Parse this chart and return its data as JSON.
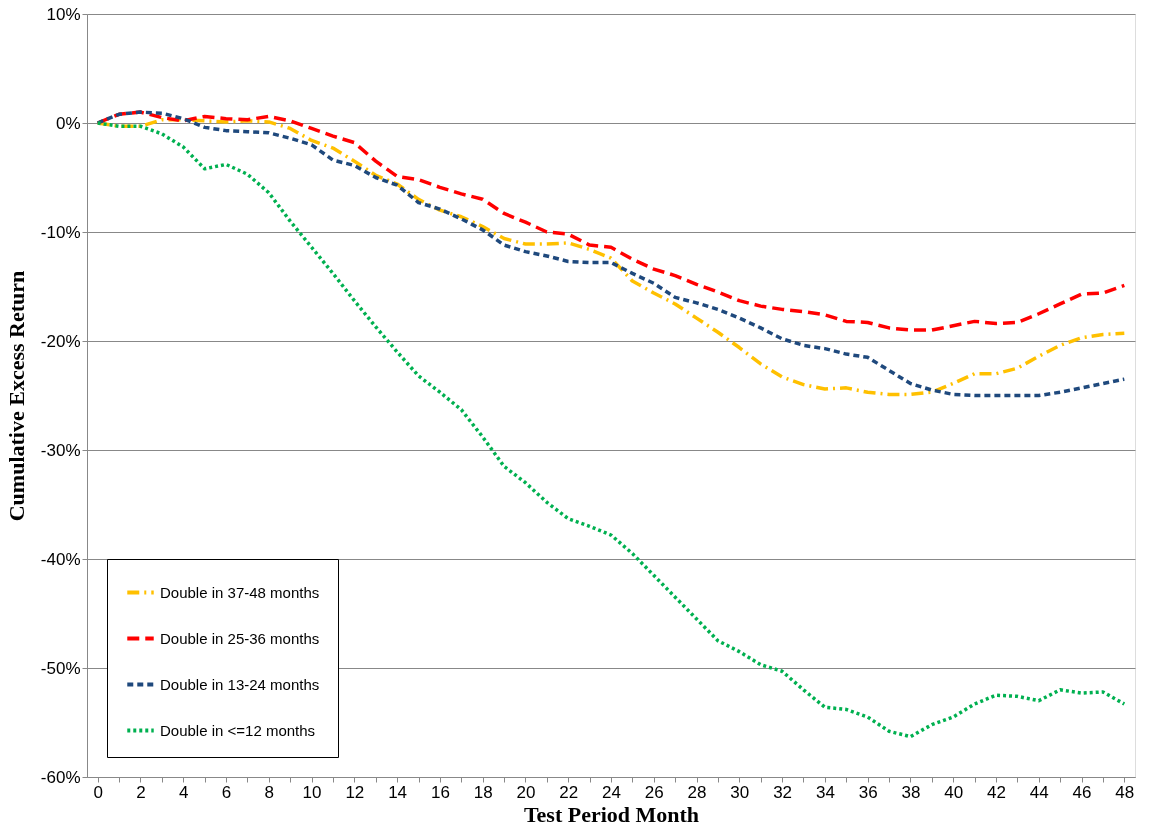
{
  "chart_data": {
    "type": "line",
    "xlabel": "Test Period Month",
    "ylabel": "Cumulative Excess Return",
    "x": [
      0,
      1,
      2,
      3,
      4,
      5,
      6,
      7,
      8,
      9,
      10,
      11,
      12,
      13,
      14,
      15,
      16,
      17,
      18,
      19,
      20,
      21,
      22,
      23,
      24,
      25,
      26,
      27,
      28,
      29,
      30,
      31,
      32,
      33,
      34,
      35,
      36,
      37,
      38,
      39,
      40,
      41,
      42,
      43,
      44,
      45,
      46,
      47,
      48
    ],
    "series": [
      {
        "name": "Double in 37-48 months",
        "color": "#ffc000",
        "line_style": "dashdot",
        "values": [
          0,
          -0.3,
          -0.3,
          0.3,
          0.3,
          0.2,
          0.1,
          0.2,
          0.1,
          -0.5,
          -1.6,
          -2.3,
          -3.5,
          -4.8,
          -5.6,
          -7,
          -8,
          -8.6,
          -9.5,
          -10.6,
          -11.1,
          -11.1,
          -11,
          -11.6,
          -12.4,
          -14.5,
          -15.6,
          -16.6,
          -17.9,
          -19.2,
          -20.6,
          -22.1,
          -23.3,
          -24,
          -24.4,
          -24.3,
          -24.7,
          -24.9,
          -24.9,
          -24.7,
          -23.9,
          -23,
          -23,
          -22.5,
          -21.4,
          -20.4,
          -19.7,
          -19.4,
          -19.3
        ]
      },
      {
        "name": "Double in 25-36 months",
        "color": "#ff0000",
        "line_style": "dashed",
        "values": [
          0,
          0.8,
          1,
          0.5,
          0.2,
          0.6,
          0.4,
          0.3,
          0.6,
          0.2,
          -0.5,
          -1.2,
          -1.8,
          -3.5,
          -4.9,
          -5.2,
          -5.9,
          -6.5,
          -7,
          -8.3,
          -9.1,
          -10,
          -10.2,
          -11.2,
          -11.4,
          -12.5,
          -13.4,
          -14,
          -14.8,
          -15.5,
          -16.3,
          -16.8,
          -17.1,
          -17.3,
          -17.6,
          -18.2,
          -18.3,
          -18.8,
          -19,
          -19,
          -18.6,
          -18.2,
          -18.4,
          -18.3,
          -17.5,
          -16.6,
          -15.7,
          -15.6,
          -14.9
        ]
      },
      {
        "name": "Double in 13-24 months",
        "color": "#1f497d",
        "line_style": "dashed",
        "values": [
          0,
          0.8,
          1,
          0.9,
          0.4,
          -0.4,
          -0.7,
          -0.8,
          -0.9,
          -1.4,
          -2,
          -3.4,
          -3.9,
          -5,
          -5.7,
          -7.3,
          -7.9,
          -8.8,
          -9.8,
          -11.2,
          -11.8,
          -12.2,
          -12.7,
          -12.8,
          -12.8,
          -13.8,
          -14.7,
          -16,
          -16.5,
          -17.1,
          -17.9,
          -18.8,
          -19.8,
          -20.4,
          -20.7,
          -21.2,
          -21.5,
          -22.7,
          -23.9,
          -24.5,
          -24.9,
          -25,
          -25,
          -25,
          -25,
          -24.7,
          -24.3,
          -23.9,
          -23.5
        ]
      },
      {
        "name": "Double in <=12 months",
        "color": "#00b050",
        "line_style": "dotted",
        "values": [
          0,
          -0.3,
          -0.3,
          -1,
          -2.2,
          -4.2,
          -3.8,
          -4.7,
          -6.4,
          -9,
          -11.4,
          -13.8,
          -16.3,
          -18.7,
          -21,
          -23.2,
          -24.7,
          -26.3,
          -28.8,
          -31.5,
          -33,
          -34.8,
          -36.3,
          -37,
          -37.8,
          -39.5,
          -41.5,
          -43.5,
          -45.5,
          -47.5,
          -48.5,
          -49.7,
          -50.3,
          -52,
          -53.6,
          -53.8,
          -54.5,
          -55.8,
          -56.3,
          -55.2,
          -54.5,
          -53.3,
          -52.5,
          -52.6,
          -53,
          -52,
          -52.3,
          -52.2,
          -53.3
        ]
      }
    ],
    "xlim": [
      -0.5,
      48.5
    ],
    "xticks": [
      0,
      {
        "value": 1,
        "label": null
      },
      2,
      {
        "value": 3,
        "label": null
      },
      4,
      {
        "value": 5,
        "label": null
      },
      6,
      {
        "value": 7,
        "label": null
      },
      8,
      {
        "value": 9,
        "label": null
      },
      10,
      {
        "value": 11,
        "label": null
      },
      12,
      {
        "value": 13,
        "label": null
      },
      14,
      {
        "value": 15,
        "label": null
      },
      16,
      {
        "value": 17,
        "label": null
      },
      18,
      {
        "value": 19,
        "label": null
      },
      20,
      {
        "value": 21,
        "label": null
      },
      22,
      {
        "value": 23,
        "label": null
      },
      24,
      {
        "value": 25,
        "label": null
      },
      26,
      {
        "value": 27,
        "label": null
      },
      28,
      {
        "value": 29,
        "label": null
      },
      30,
      {
        "value": 31,
        "label": null
      },
      32,
      {
        "value": 33,
        "label": null
      },
      34,
      {
        "value": 35,
        "label": null
      },
      36,
      {
        "value": 37,
        "label": null
      },
      38,
      {
        "value": 39,
        "label": null
      },
      40,
      {
        "value": 41,
        "label": null
      },
      42,
      {
        "value": 43,
        "label": null
      },
      44,
      {
        "value": 45,
        "label": null
      },
      46,
      {
        "value": 47,
        "label": null
      },
      48
    ],
    "ylim": [
      -60,
      10
    ],
    "yticks": [
      {
        "value": 10,
        "label": "10%"
      },
      {
        "value": 0,
        "label": "0%"
      },
      {
        "value": -10,
        "label": "-10%"
      },
      {
        "value": -20,
        "label": "-20%"
      },
      {
        "value": -30,
        "label": "-30%"
      },
      {
        "value": -40,
        "label": "-40%"
      },
      {
        "value": -50,
        "label": "-50%"
      },
      {
        "value": -60,
        "label": "-60%"
      }
    ],
    "grid": "y",
    "legend": "bottom left",
    "marker": "none"
  }
}
